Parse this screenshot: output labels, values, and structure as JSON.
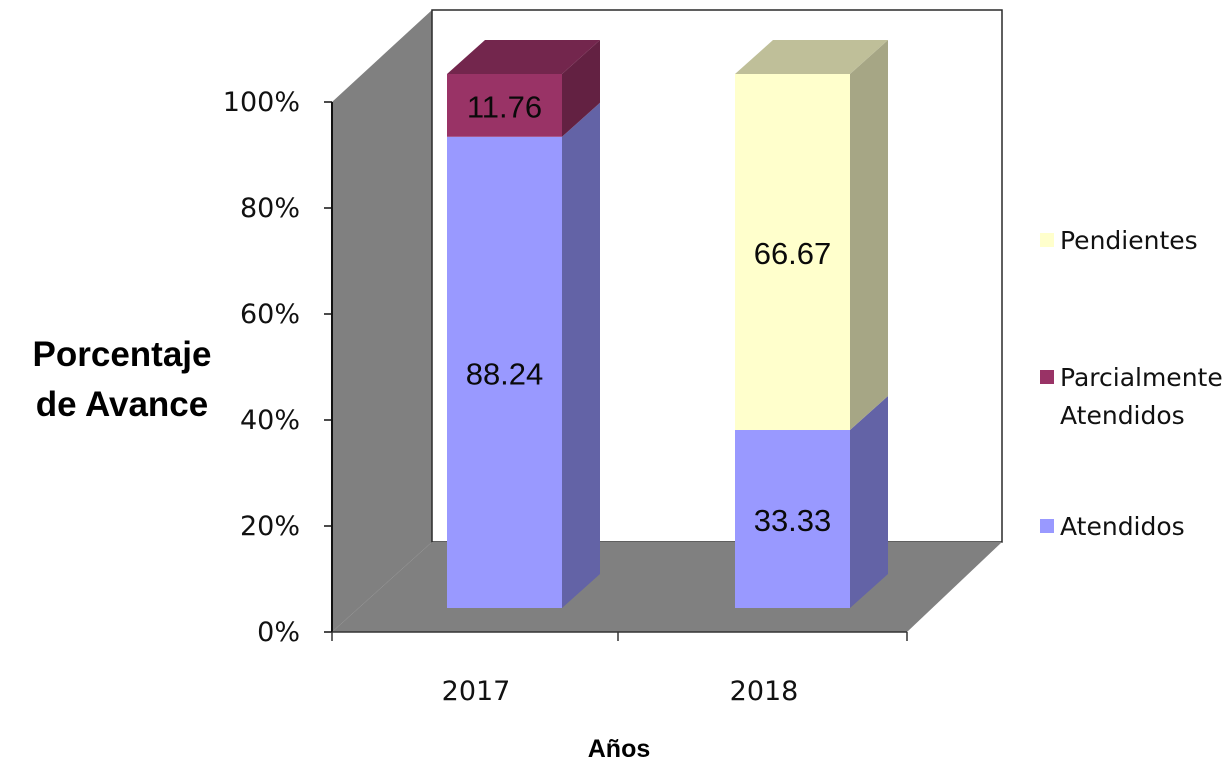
{
  "chart_data": {
    "type": "bar",
    "stacked": true,
    "stacking": "percent",
    "three_d": true,
    "categories": [
      "2017",
      "2018"
    ],
    "series": [
      {
        "name": "Atendidos",
        "values": [
          88.24,
          33.33
        ],
        "color": "#9999ff",
        "labels": [
          "88.24",
          "33.33"
        ]
      },
      {
        "name": "Parcialmente Atendidos",
        "values": [
          11.76,
          0
        ],
        "color": "#993366",
        "labels": [
          "11.76",
          ""
        ]
      },
      {
        "name": "Pendientes",
        "values": [
          0,
          66.67
        ],
        "color": "#ffffcc",
        "labels": [
          "",
          "66.67"
        ]
      }
    ],
    "ylabel": "Porcentaje de Avance",
    "ylabel_lines": [
      "Porcentaje",
      "de Avance"
    ],
    "xlabel": "Años",
    "ylim": [
      0,
      100
    ],
    "yticks": [
      "0%",
      "20%",
      "40%",
      "60%",
      "80%",
      "100%"
    ],
    "legend": {
      "position": "right",
      "entries": [
        {
          "lines": [
            "Pendientes"
          ],
          "color": "#ffffcc"
        },
        {
          "lines": [
            "Parcialmente",
            "Atendidos"
          ],
          "color": "#993366"
        },
        {
          "lines": [
            "Atendidos"
          ],
          "color": "#9999ff"
        }
      ]
    },
    "grid": false,
    "wall_color": "#808080"
  }
}
